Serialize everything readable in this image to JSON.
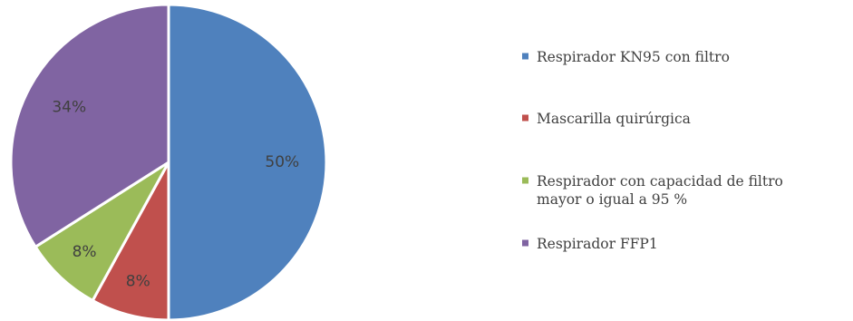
{
  "chart_data": {
    "type": "pie",
    "title": "",
    "legend_position": "right",
    "slices": [
      {
        "label": "Respirador KN95 con filtro",
        "value": 50,
        "display": "50%",
        "color": "#4f81bd",
        "legend_lines": [
          "Respirador KN95 con filtro"
        ]
      },
      {
        "label": "Mascarilla quirúrgica",
        "value": 8,
        "display": "8%",
        "color": "#c0504d",
        "legend_lines": [
          "Mascarilla quirúrgica"
        ]
      },
      {
        "label": "Respirador con capacidad de filtro mayor o igual a 95 %",
        "value": 8,
        "display": "8%",
        "color": "#9bbb59",
        "legend_lines": [
          "Respirador con capacidad de filtro",
          "mayor o igual a 95 %"
        ]
      },
      {
        "label": "Respirador FFP1",
        "value": 34,
        "display": "34%",
        "color": "#8064a2",
        "legend_lines": [
          "Respirador FFP1"
        ]
      }
    ]
  }
}
